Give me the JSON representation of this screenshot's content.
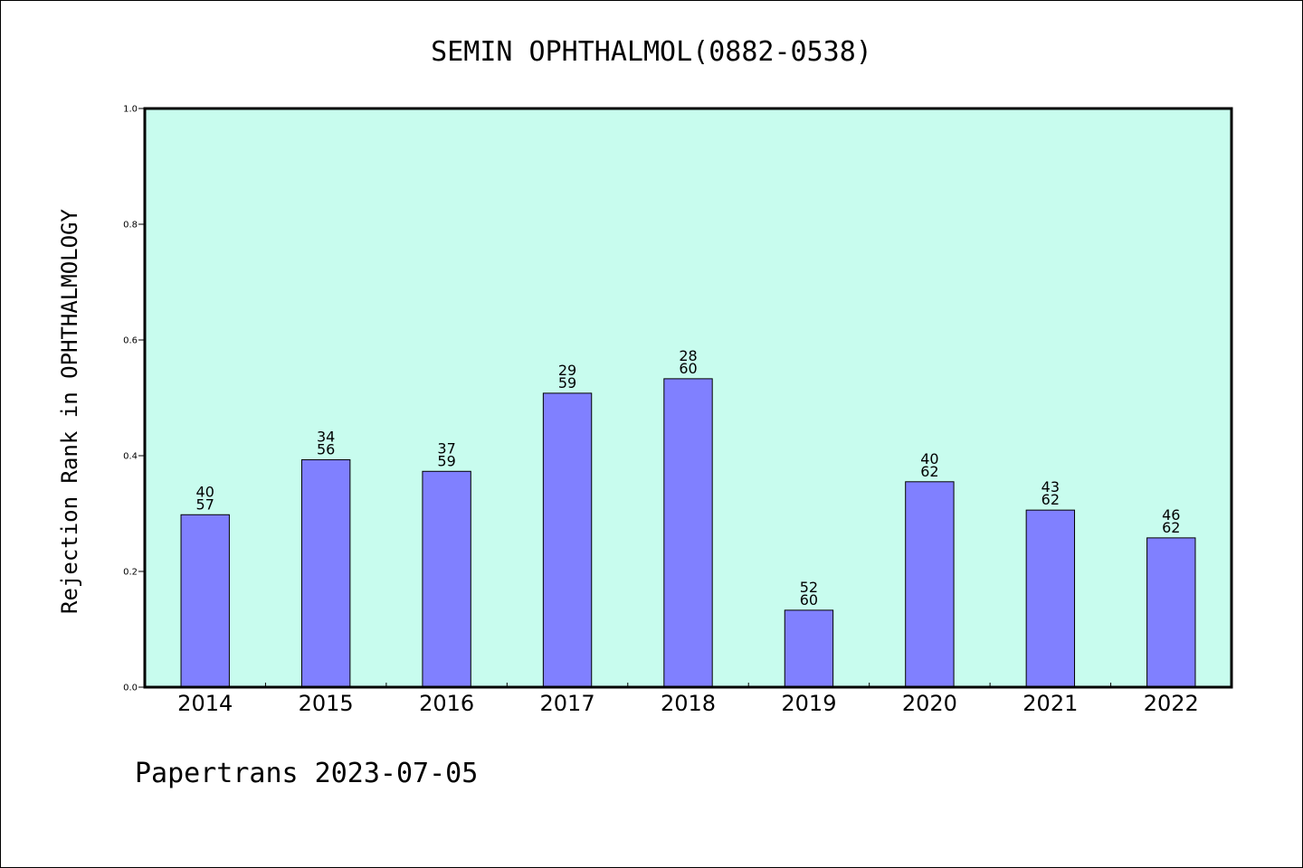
{
  "chart_data": {
    "type": "bar",
    "title": "SEMIN OPHTHALMOL(0882-0538)",
    "xlabel": "",
    "ylabel": "Rejection Rank in OPHTHALMOLOGY",
    "ylim": [
      0,
      1.0
    ],
    "yticks": [
      "0.0",
      "0.2",
      "0.4",
      "0.6",
      "0.8",
      "1.0"
    ],
    "categories": [
      "2014",
      "2015",
      "2016",
      "2017",
      "2018",
      "2019",
      "2020",
      "2021",
      "2022"
    ],
    "values": [
      0.298,
      0.393,
      0.373,
      0.508,
      0.533,
      0.133,
      0.355,
      0.306,
      0.258
    ],
    "rank": [
      "40",
      "34",
      "37",
      "29",
      "28",
      "52",
      "40",
      "43",
      "46"
    ],
    "total": [
      "57",
      "56",
      "59",
      "59",
      "60",
      "60",
      "62",
      "62",
      "62"
    ],
    "grid": false,
    "colors": {
      "plot_bg": "#c8fcee",
      "bar": "#8080ff"
    }
  },
  "footer": "Papertrans 2023-07-05"
}
